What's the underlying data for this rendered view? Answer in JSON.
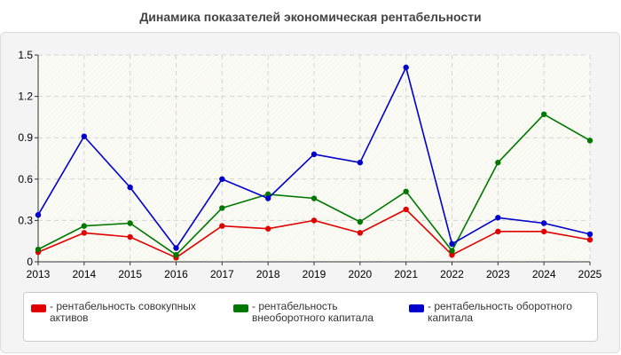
{
  "chart_data": {
    "type": "line",
    "title": "Динамика показателей экономическая рентабельности",
    "xlabel": "",
    "ylabel": "",
    "x": [
      "2013",
      "2014",
      "2015",
      "2016",
      "2017",
      "2018",
      "2019",
      "2020",
      "2021",
      "2022",
      "2023",
      "2024",
      "2025"
    ],
    "ylim": [
      0,
      1.5
    ],
    "yticks": [
      "0",
      "0.3",
      "0.6",
      "0.9",
      "1.2",
      "1.5"
    ],
    "grid": true,
    "legend_position": "bottom",
    "series": [
      {
        "name": "- рентабельность совокупных активов",
        "color": "#e00000",
        "values": [
          0.07,
          0.21,
          0.18,
          0.03,
          0.26,
          0.24,
          0.3,
          0.21,
          0.38,
          0.05,
          0.22,
          0.22,
          0.16
        ]
      },
      {
        "name": "- рентабельность внеоборотного капитала",
        "color": "#007700",
        "values": [
          0.09,
          0.26,
          0.28,
          0.05,
          0.39,
          0.49,
          0.46,
          0.29,
          0.51,
          0.08,
          0.72,
          1.07,
          0.88
        ]
      },
      {
        "name": "- рентабельность оборотного капитала",
        "color": "#0000cc",
        "values": [
          0.34,
          0.91,
          0.54,
          0.1,
          0.6,
          0.46,
          0.78,
          0.72,
          1.41,
          0.13,
          0.32,
          0.28,
          0.2
        ]
      }
    ]
  }
}
